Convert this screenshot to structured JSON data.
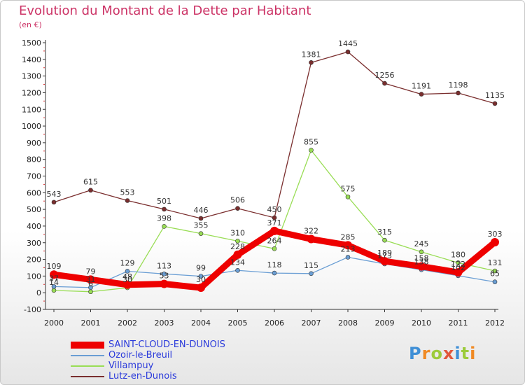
{
  "title": "Evolution du Montant de la Dette par Habitant",
  "subtitle": "(en €)",
  "brand": {
    "letters": [
      "P",
      "r",
      "o",
      "x",
      "i",
      "t",
      "i"
    ],
    "colors": [
      "#3f8fd6",
      "#f08a24",
      "#9ccb3b",
      "#e2573b",
      "#3f8fd6",
      "#9ccb3b",
      "#f08a24"
    ]
  },
  "chart_data": {
    "type": "line",
    "title": "Evolution du Montant de la Dette par Habitant",
    "subtitle": "(en €)",
    "x": [
      "2000",
      "2001",
      "2002",
      "2003",
      "2004",
      "2005",
      "2006",
      "2007",
      "2008",
      "2009",
      "2010",
      "2011",
      "2012"
    ],
    "ylim": [
      -100,
      1500
    ],
    "yticks": [
      -100,
      0,
      100,
      200,
      300,
      400,
      500,
      600,
      700,
      800,
      900,
      1000,
      1100,
      1200,
      1300,
      1400,
      1500
    ],
    "grid": false,
    "legend_position": "bottom-left",
    "series": [
      {
        "name": "SAINT-CLOUD-EN-DUNOIS",
        "color": "#ee0000",
        "emphasis": true,
        "values": [
          109,
          79,
          48,
          53,
          30,
          228,
          371,
          322,
          285,
          189,
          158,
          122,
          303
        ],
        "labels": [
          "109",
          "79",
          "48",
          "53",
          "30",
          "228",
          "371",
          "322",
          "285",
          "189",
          "158",
          "122",
          "303"
        ]
      },
      {
        "name": "Ozoir-le-Breuil",
        "color": "#6a9ed4",
        "values": [
          37,
          31,
          129,
          113,
          99,
          134,
          118,
          115,
          213,
          173,
          138,
          102,
          65
        ],
        "labels": [
          "37",
          "31",
          "129",
          "113",
          "99",
          "134",
          "118",
          "115",
          "213",
          "173",
          "138",
          "102",
          "65"
        ]
      },
      {
        "name": "Villampuy",
        "color": "#99dd55",
        "values": [
          14,
          6,
          30,
          398,
          355,
          310,
          264,
          855,
          575,
          315,
          245,
          180,
          131
        ],
        "labels": [
          "14",
          "6",
          "30",
          "398",
          "355",
          "310",
          "264",
          "855",
          "575",
          "315",
          "245",
          "180",
          "131"
        ]
      },
      {
        "name": "Lutz-en-Dunois",
        "color": "#7a2e2e",
        "values": [
          543,
          615,
          553,
          501,
          446,
          506,
          450,
          1381,
          1445,
          1256,
          1191,
          1198,
          1135
        ],
        "labels": [
          "543",
          "615",
          "553",
          "501",
          "446",
          "506",
          "450",
          "1381",
          "1445",
          "1256",
          "1191",
          "1198",
          "1135"
        ]
      }
    ]
  }
}
